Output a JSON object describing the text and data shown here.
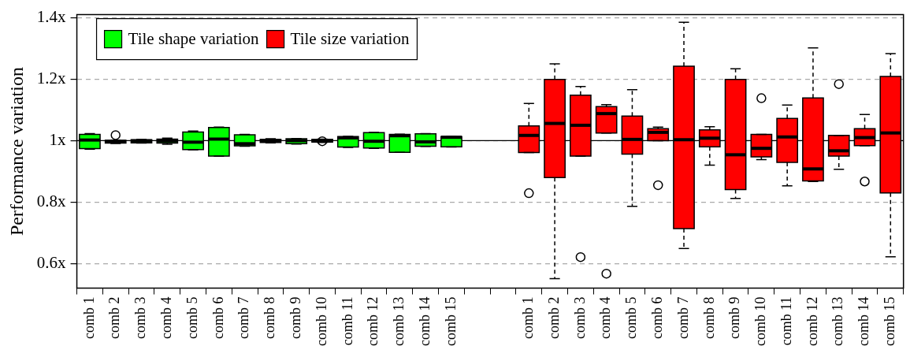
{
  "chart_data": {
    "type": "box",
    "ylabel": "Performance variation",
    "categories": [
      "comb 1",
      "comb 2",
      "comb 3",
      "comb 4",
      "comb 5",
      "comb 6",
      "comb 7",
      "comb 8",
      "comb 9",
      "comb 10",
      "comb 11",
      "comb 12",
      "comb 13",
      "comb 14",
      "comb 15",
      null,
      null,
      "comb 1",
      "comb 2",
      "comb 3",
      "comb 4",
      "comb 5",
      "comb 6",
      "comb 7",
      "comb 8",
      "comb 9",
      "comb 10",
      "comb 11",
      "comb 12",
      "comb 13",
      "comb 14",
      "comb 15"
    ],
    "ylim": [
      0.52,
      1.41
    ],
    "yticks": [
      {
        "value": 0.6,
        "label": "0.6x"
      },
      {
        "value": 0.8,
        "label": "0.8x"
      },
      {
        "value": 1,
        "label": "1x"
      },
      {
        "value": 1.2,
        "label": "1.2x"
      },
      {
        "value": 1.4,
        "label": "1.4x"
      }
    ],
    "grid": "y",
    "legend": "top left",
    "ref_lines": [
      {
        "axis": "y",
        "value": 1,
        "label": null,
        "color": "#000000",
        "line_style": "solid"
      }
    ],
    "series": [
      {
        "name": "Tile shape variation",
        "color": "#00ff00",
        "boxes": [
          {
            "low": 0.972,
            "q1": 0.974,
            "median": 1.002,
            "q3": 1.02,
            "high": 1.023
          },
          {
            "low": 0.991,
            "q1": 0.992,
            "median": 0.997,
            "q3": 1.001,
            "high": 1.002,
            "outliers": [
              1.018
            ]
          },
          {
            "low": 0.992,
            "q1": 0.993,
            "median": 0.999,
            "q3": 1.003,
            "high": 1.004
          },
          {
            "low": 0.988,
            "q1": 0.992,
            "median": 0.999,
            "q3": 1.005,
            "high": 1.008
          },
          {
            "low": 0.97,
            "q1": 0.971,
            "median": 0.995,
            "q3": 1.028,
            "high": 1.031
          },
          {
            "low": 0.95,
            "q1": 0.95,
            "median": 1.005,
            "q3": 1.043,
            "high": 1.044
          },
          {
            "low": 0.982,
            "q1": 0.983,
            "median": 0.99,
            "q3": 1.019,
            "high": 1.02
          },
          {
            "low": 0.993,
            "q1": 0.994,
            "median": 1,
            "q3": 1.004,
            "high": 1.006
          },
          {
            "low": 0.989,
            "q1": 0.99,
            "median": 1,
            "q3": 1.006,
            "high": 1.007
          },
          {
            "low": 0.994,
            "q1": 0.995,
            "median": 0.999,
            "q3": 1.004,
            "high": 1.005,
            "outliers": [
              0.998
            ]
          },
          {
            "low": 0.978,
            "q1": 0.979,
            "median": 1.009,
            "q3": 1.013,
            "high": 1.014
          },
          {
            "low": 0.975,
            "q1": 0.976,
            "median": 0.998,
            "q3": 1.026,
            "high": 1.027
          },
          {
            "low": 0.962,
            "q1": 0.962,
            "median": 1.016,
            "q3": 1.02,
            "high": 1.021
          },
          {
            "low": 0.981,
            "q1": 0.982,
            "median": 0.996,
            "q3": 1.022,
            "high": 1.023
          },
          {
            "low": 0.979,
            "q1": 0.98,
            "median": 1.011,
            "q3": 1.013,
            "high": 1.014
          },
          null,
          null,
          null,
          null,
          null,
          null,
          null,
          null,
          null,
          null,
          null,
          null,
          null,
          null,
          null,
          null,
          null
        ]
      },
      {
        "name": "Tile size variation",
        "color": "#ff0000",
        "boxes": [
          null,
          null,
          null,
          null,
          null,
          null,
          null,
          null,
          null,
          null,
          null,
          null,
          null,
          null,
          null,
          null,
          null,
          {
            "low": 0.961,
            "q1": 0.961,
            "median": 1.017,
            "q3": 1.048,
            "high": 1.121,
            "outliers": [
              0.829
            ]
          },
          {
            "low": 0.551,
            "q1": 0.88,
            "median": 1.056,
            "q3": 1.199,
            "high": 1.25
          },
          {
            "low": 0.95,
            "q1": 0.95,
            "median": 1.05,
            "q3": 1.148,
            "high": 1.176,
            "outliers": [
              0.621
            ]
          },
          {
            "low": 1.025,
            "q1": 1.025,
            "median": 1.088,
            "q3": 1.111,
            "high": 1.117,
            "outliers": [
              0.567
            ]
          },
          {
            "low": 0.786,
            "q1": 0.956,
            "median": 1.004,
            "q3": 1.08,
            "high": 1.166
          },
          {
            "low": 1,
            "q1": 1,
            "median": 1.027,
            "q3": 1.039,
            "high": 1.044,
            "outliers": [
              0.855
            ]
          },
          {
            "low": 0.649,
            "q1": 0.714,
            "median": 1.003,
            "q3": 1.242,
            "high": 1.385
          },
          {
            "low": 0.92,
            "q1": 0.98,
            "median": 1.008,
            "q3": 1.035,
            "high": 1.045
          },
          {
            "low": 0.812,
            "q1": 0.841,
            "median": 0.954,
            "q3": 1.199,
            "high": 1.234
          },
          {
            "low": 0.938,
            "q1": 0.947,
            "median": 0.975,
            "q3": 1.02,
            "high": 1.02,
            "outliers": [
              1.138
            ]
          },
          {
            "low": 0.853,
            "q1": 0.929,
            "median": 1.012,
            "q3": 1.072,
            "high": 1.116
          },
          {
            "low": 0.867,
            "q1": 0.869,
            "median": 0.908,
            "q3": 1.139,
            "high": 1.302
          },
          {
            "low": 0.907,
            "q1": 0.95,
            "median": 0.967,
            "q3": 1.017,
            "high": 1.017,
            "outliers": [
              1.184
            ]
          },
          {
            "low": 0.984,
            "q1": 0.984,
            "median": 1.01,
            "q3": 1.039,
            "high": 1.085,
            "outliers": [
              0.867
            ]
          },
          {
            "low": 0.622,
            "q1": 0.83,
            "median": 1.025,
            "q3": 1.209,
            "high": 1.283
          }
        ]
      }
    ]
  }
}
